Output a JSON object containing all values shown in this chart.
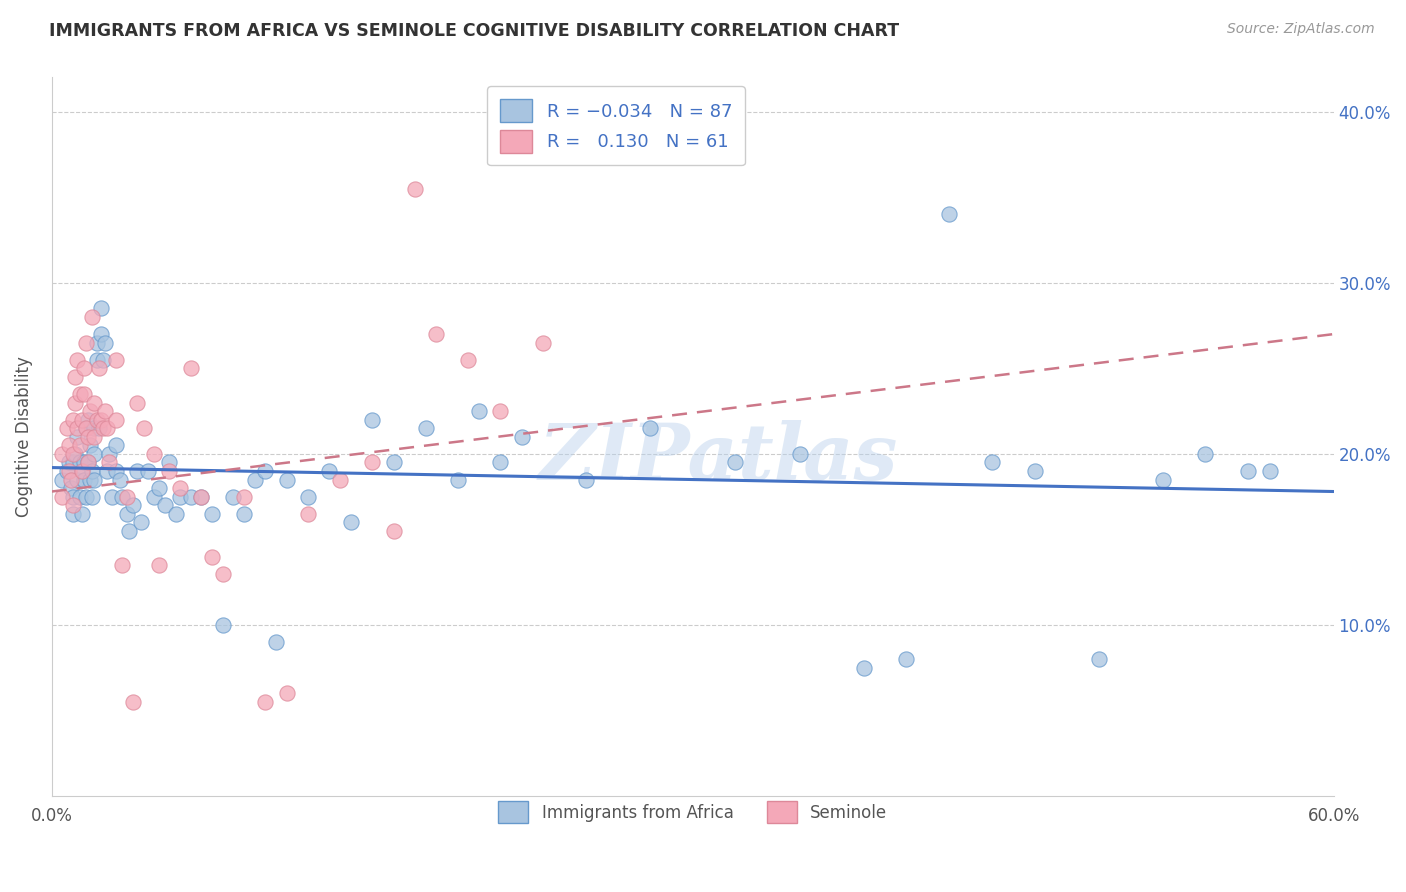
{
  "title": "IMMIGRANTS FROM AFRICA VS SEMINOLE COGNITIVE DISABILITY CORRELATION CHART",
  "source": "Source: ZipAtlas.com",
  "ylabel": "Cognitive Disability",
  "xlim": [
    0,
    0.6
  ],
  "ylim": [
    0,
    0.42
  ],
  "yticks": [
    0.1,
    0.2,
    0.3,
    0.4
  ],
  "right_ytick_labels": [
    "10.0%",
    "20.0%",
    "30.0%",
    "40.0%"
  ],
  "blue_R": "-0.034",
  "blue_N": "87",
  "pink_R": "0.130",
  "pink_N": "61",
  "blue_color": "#a8c4e0",
  "pink_color": "#f4a8b8",
  "blue_edge_color": "#6699cc",
  "pink_edge_color": "#dd8899",
  "blue_line_color": "#4472c4",
  "pink_line_color": "#cc7788",
  "watermark": "ZIPatlas",
  "blue_line_start_y": 0.192,
  "blue_line_end_y": 0.178,
  "pink_line_start_y": 0.178,
  "pink_line_end_y": 0.27,
  "blue_scatter_x": [
    0.005,
    0.007,
    0.008,
    0.009,
    0.01,
    0.01,
    0.01,
    0.011,
    0.012,
    0.012,
    0.013,
    0.013,
    0.014,
    0.014,
    0.015,
    0.015,
    0.016,
    0.016,
    0.017,
    0.017,
    0.018,
    0.018,
    0.019,
    0.019,
    0.02,
    0.02,
    0.02,
    0.021,
    0.021,
    0.022,
    0.023,
    0.023,
    0.024,
    0.025,
    0.026,
    0.027,
    0.028,
    0.03,
    0.03,
    0.032,
    0.033,
    0.035,
    0.036,
    0.038,
    0.04,
    0.042,
    0.045,
    0.048,
    0.05,
    0.053,
    0.055,
    0.058,
    0.06,
    0.065,
    0.07,
    0.075,
    0.08,
    0.085,
    0.09,
    0.095,
    0.1,
    0.105,
    0.11,
    0.12,
    0.13,
    0.14,
    0.15,
    0.16,
    0.175,
    0.19,
    0.2,
    0.21,
    0.22,
    0.25,
    0.28,
    0.32,
    0.35,
    0.38,
    0.4,
    0.42,
    0.44,
    0.46,
    0.49,
    0.52,
    0.54,
    0.56,
    0.57
  ],
  "blue_scatter_y": [
    0.185,
    0.19,
    0.195,
    0.18,
    0.195,
    0.175,
    0.165,
    0.2,
    0.21,
    0.185,
    0.195,
    0.175,
    0.19,
    0.165,
    0.195,
    0.185,
    0.215,
    0.175,
    0.22,
    0.195,
    0.205,
    0.185,
    0.19,
    0.175,
    0.2,
    0.215,
    0.185,
    0.255,
    0.265,
    0.215,
    0.27,
    0.285,
    0.255,
    0.265,
    0.19,
    0.2,
    0.175,
    0.205,
    0.19,
    0.185,
    0.175,
    0.165,
    0.155,
    0.17,
    0.19,
    0.16,
    0.19,
    0.175,
    0.18,
    0.17,
    0.195,
    0.165,
    0.175,
    0.175,
    0.175,
    0.165,
    0.1,
    0.175,
    0.165,
    0.185,
    0.19,
    0.09,
    0.185,
    0.175,
    0.19,
    0.16,
    0.22,
    0.195,
    0.215,
    0.185,
    0.225,
    0.195,
    0.21,
    0.185,
    0.215,
    0.195,
    0.2,
    0.075,
    0.08,
    0.34,
    0.195,
    0.19,
    0.08,
    0.185,
    0.2,
    0.19,
    0.19
  ],
  "pink_scatter_x": [
    0.005,
    0.005,
    0.007,
    0.008,
    0.008,
    0.009,
    0.01,
    0.01,
    0.01,
    0.011,
    0.011,
    0.012,
    0.012,
    0.013,
    0.013,
    0.014,
    0.014,
    0.015,
    0.015,
    0.016,
    0.016,
    0.017,
    0.017,
    0.018,
    0.019,
    0.02,
    0.02,
    0.021,
    0.022,
    0.023,
    0.024,
    0.025,
    0.026,
    0.027,
    0.03,
    0.03,
    0.033,
    0.035,
    0.038,
    0.04,
    0.043,
    0.048,
    0.05,
    0.055,
    0.06,
    0.065,
    0.07,
    0.075,
    0.08,
    0.09,
    0.1,
    0.11,
    0.12,
    0.135,
    0.15,
    0.16,
    0.17,
    0.18,
    0.195,
    0.21,
    0.23
  ],
  "pink_scatter_y": [
    0.2,
    0.175,
    0.215,
    0.205,
    0.19,
    0.185,
    0.22,
    0.2,
    0.17,
    0.245,
    0.23,
    0.255,
    0.215,
    0.205,
    0.235,
    0.22,
    0.19,
    0.25,
    0.235,
    0.265,
    0.215,
    0.21,
    0.195,
    0.225,
    0.28,
    0.23,
    0.21,
    0.22,
    0.25,
    0.22,
    0.215,
    0.225,
    0.215,
    0.195,
    0.255,
    0.22,
    0.135,
    0.175,
    0.055,
    0.23,
    0.215,
    0.2,
    0.135,
    0.19,
    0.18,
    0.25,
    0.175,
    0.14,
    0.13,
    0.175,
    0.055,
    0.06,
    0.165,
    0.185,
    0.195,
    0.155,
    0.355,
    0.27,
    0.255,
    0.225,
    0.265
  ]
}
